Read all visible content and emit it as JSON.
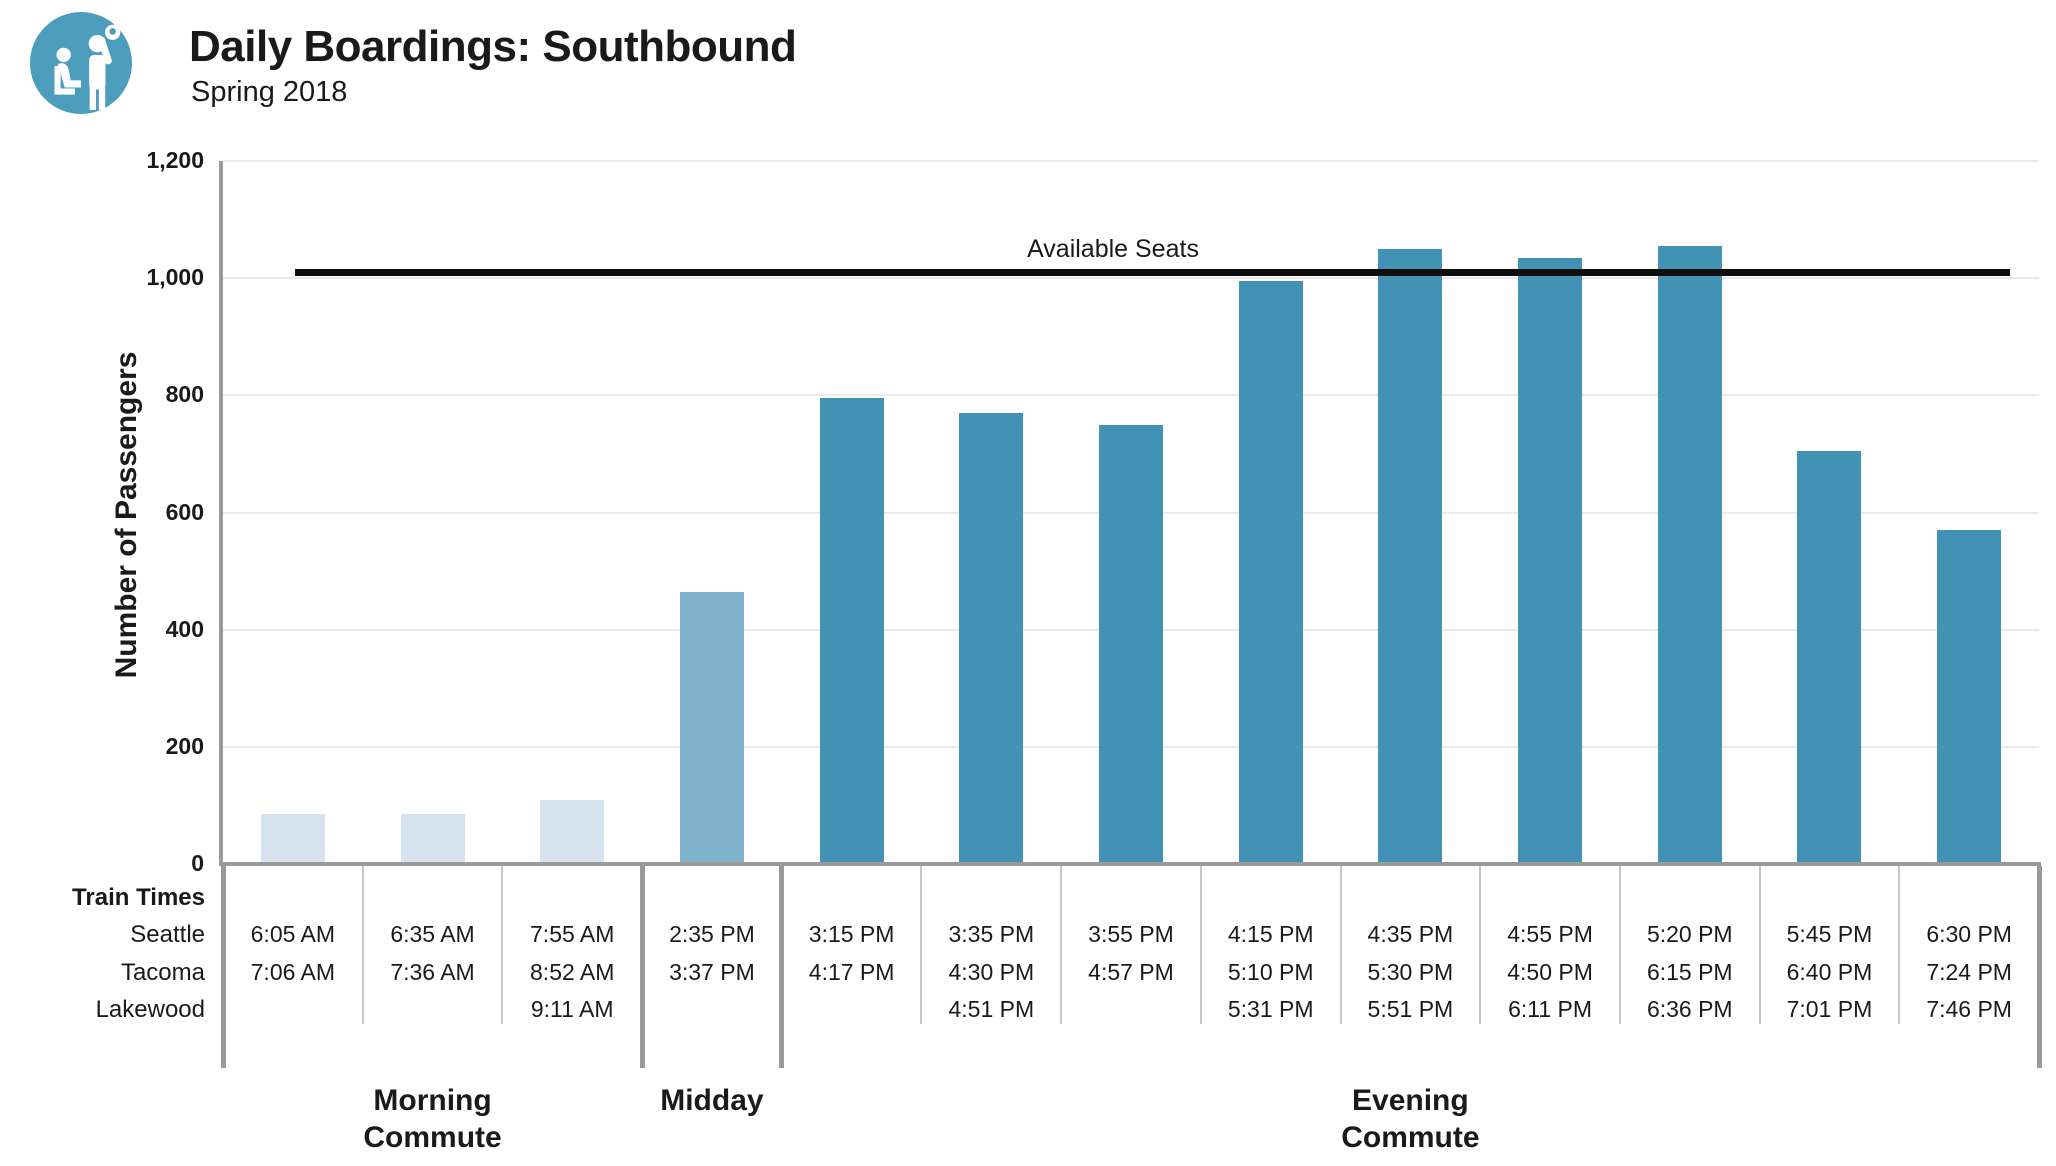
{
  "header": {
    "title": "Daily Boardings: Southbound",
    "subtitle": "Spring 2018",
    "logo_icon": "transit-riders-icon"
  },
  "colors": {
    "logo": "#4c9dbc",
    "morning": "#d6e3ee",
    "midday": "#7fb1cb",
    "evening": "#4192b4",
    "reference_line": "#0d0d0d",
    "axis": "#9a9a9a",
    "gridline": "#eaeaea",
    "divider_thin": "#c6c6c6",
    "text": "#1a1a1a"
  },
  "chart_data": {
    "type": "bar",
    "title": "Daily Boardings: Southbound",
    "subtitle": "Spring 2018",
    "xlabel": "",
    "ylabel": "Number of Passengers",
    "ylim": [
      0,
      1200
    ],
    "yticks": [
      0,
      200,
      400,
      600,
      800,
      1000,
      1200
    ],
    "ytick_labels": [
      "0",
      "200",
      "400",
      "600",
      "800",
      "1,000",
      "1,200"
    ],
    "grid": true,
    "reference_line": {
      "label": "Available Seats",
      "value": 1010
    },
    "categories": [
      "6:05 AM",
      "6:35 AM",
      "7:55 AM",
      "2:35 PM",
      "3:15 PM",
      "3:35 PM",
      "3:55 PM",
      "4:15 PM",
      "4:35 PM",
      "4:55 PM",
      "5:20 PM",
      "5:45 PM",
      "6:30 PM"
    ],
    "values": [
      85,
      85,
      110,
      465,
      795,
      770,
      750,
      995,
      1050,
      1035,
      1055,
      705,
      570
    ],
    "periods": [
      "morning",
      "morning",
      "morning",
      "midday",
      "evening",
      "evening",
      "evening",
      "evening",
      "evening",
      "evening",
      "evening",
      "evening",
      "evening"
    ]
  },
  "table": {
    "corner_header": "Train Times",
    "row_labels": [
      "Seattle",
      "Tacoma",
      "Lakewood"
    ],
    "columns": [
      {
        "seattle": "6:05 AM",
        "tacoma": "7:06 AM",
        "lakewood": ""
      },
      {
        "seattle": "6:35 AM",
        "tacoma": "7:36 AM",
        "lakewood": ""
      },
      {
        "seattle": "7:55 AM",
        "tacoma": "8:52 AM",
        "lakewood": "9:11 AM"
      },
      {
        "seattle": "2:35 PM",
        "tacoma": "3:37 PM",
        "lakewood": ""
      },
      {
        "seattle": "3:15 PM",
        "tacoma": "4:17 PM",
        "lakewood": ""
      },
      {
        "seattle": "3:35 PM",
        "tacoma": "4:30 PM",
        "lakewood": "4:51 PM"
      },
      {
        "seattle": "3:55 PM",
        "tacoma": "4:57 PM",
        "lakewood": ""
      },
      {
        "seattle": "4:15 PM",
        "tacoma": "5:10 PM",
        "lakewood": "5:31 PM"
      },
      {
        "seattle": "4:35 PM",
        "tacoma": "5:30 PM",
        "lakewood": "5:51 PM"
      },
      {
        "seattle": "4:55 PM",
        "tacoma": "4:50 PM",
        "lakewood": "6:11 PM"
      },
      {
        "seattle": "5:20 PM",
        "tacoma": "6:15 PM",
        "lakewood": "6:36 PM"
      },
      {
        "seattle": "5:45 PM",
        "tacoma": "6:40 PM",
        "lakewood": "7:01 PM"
      },
      {
        "seattle": "6:30 PM",
        "tacoma": "7:24 PM",
        "lakewood": "7:46 PM"
      }
    ]
  },
  "groups": [
    {
      "label_lines": [
        "Morning",
        "Commute"
      ],
      "period": "morning",
      "start_col": 0,
      "end_col": 2
    },
    {
      "label_lines": [
        "Midday"
      ],
      "period": "midday",
      "start_col": 3,
      "end_col": 3
    },
    {
      "label_lines": [
        "Evening",
        "Commute"
      ],
      "period": "evening",
      "start_col": 4,
      "end_col": 12
    }
  ]
}
